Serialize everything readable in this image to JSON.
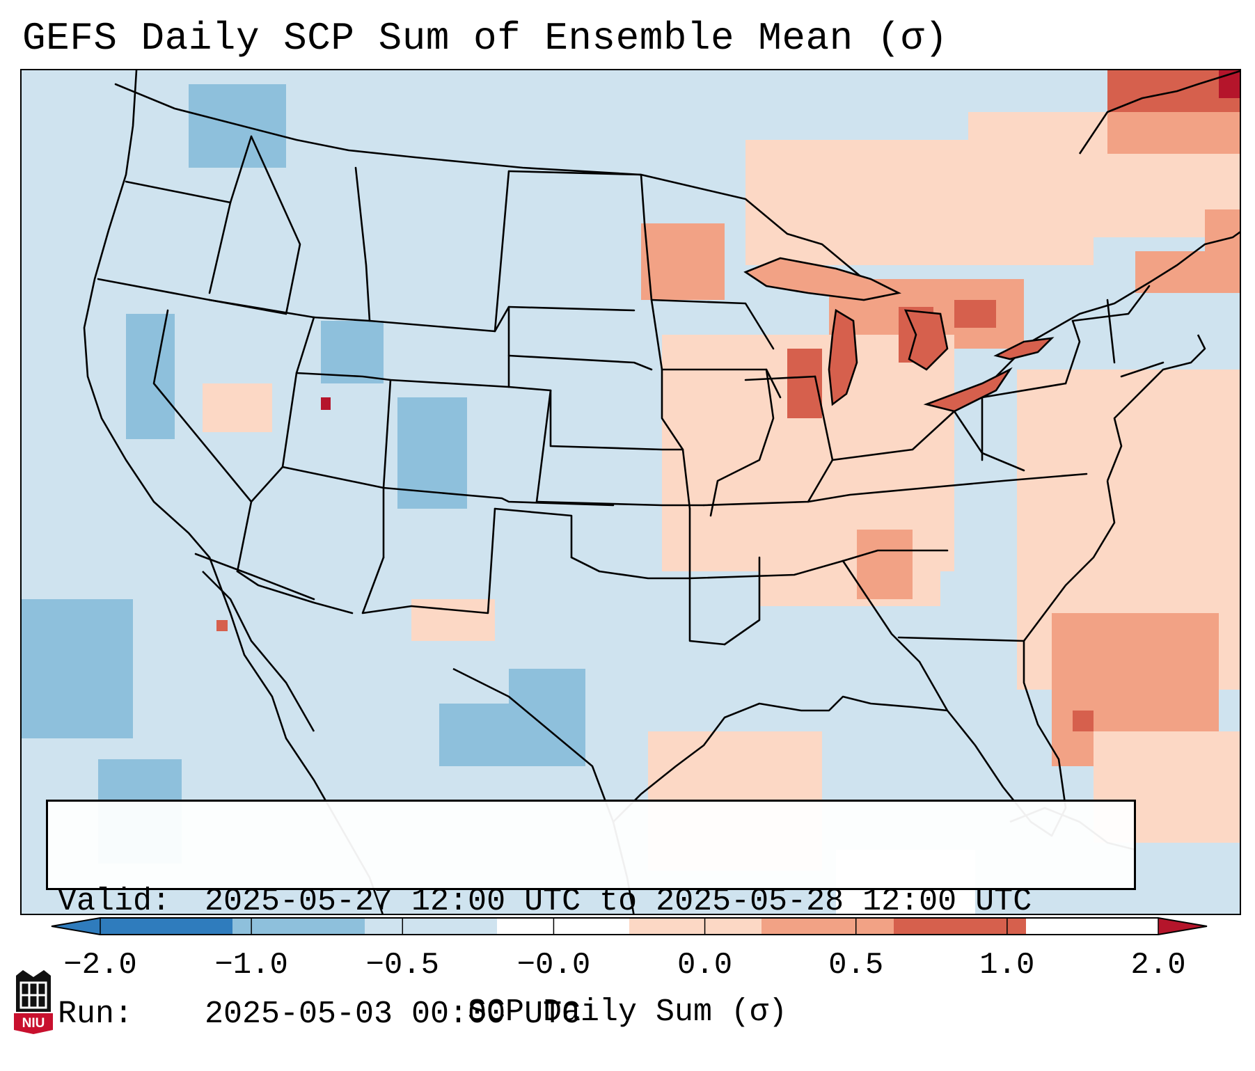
{
  "title": "GEFS Daily SCP Sum of Ensemble Mean (σ)",
  "valid_box": {
    "valid_label": "Valid:",
    "valid_value": "2025-05-27 12:00 UTC to 2025-05-28 12:00 UTC",
    "run_label": "Run:",
    "run_value": "2025-05-03 00:00 UTC"
  },
  "colorbar": {
    "label": "SCP Daily Sum (σ)",
    "ticks": [
      "−2.0",
      "−1.0",
      "−0.5",
      "−0.0",
      "0.0",
      "0.5",
      "1.0",
      "2.0"
    ],
    "colors": [
      "#2f7cbd",
      "#8ec0dc",
      "#cfe3ef",
      "#ffffff",
      "#fcd8c5",
      "#f2a285",
      "#d6604d",
      "#b5152b"
    ]
  },
  "logo": {
    "text": "NIU",
    "color": "#c8102e"
  }
}
